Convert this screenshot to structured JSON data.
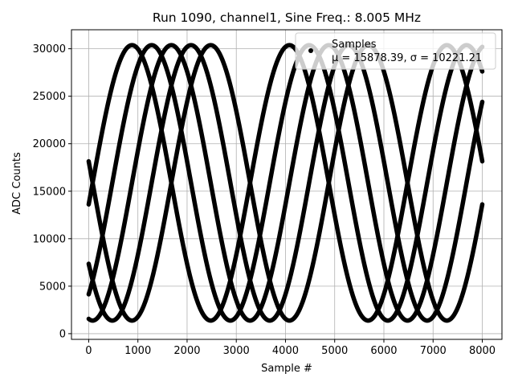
{
  "chart_data": {
    "type": "scatter",
    "title": "Run 1090, channel1, Sine Freq.: 8.005 MHz",
    "xlabel": "Sample #",
    "ylabel": "ADC Counts",
    "xlim": [
      -350,
      8400
    ],
    "ylim": [
      -600,
      32000
    ],
    "xticks": [
      0,
      1000,
      2000,
      3000,
      4000,
      5000,
      6000,
      7000,
      8000
    ],
    "yticks": [
      0,
      5000,
      10000,
      15000,
      20000,
      25000,
      30000
    ],
    "grid": true,
    "legend_position": "top-right",
    "marker_color": "#000000",
    "series": [
      {
        "name": "Samples",
        "stats_label": "μ = 15878.39, σ = 10221.21",
        "sine_model": {
          "offset": 15878,
          "amplitude": 14500,
          "x_period": 3200,
          "phase_offsets_samples": [
            1680,
            1280,
            880,
            480,
            80
          ]
        },
        "x_range": [
          0,
          8000
        ]
      }
    ]
  },
  "layout_hint": {}
}
